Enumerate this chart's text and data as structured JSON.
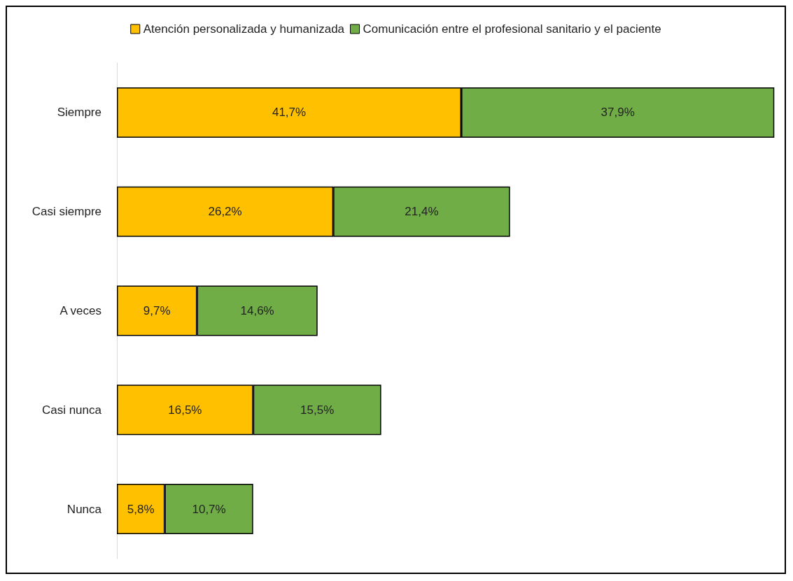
{
  "chart_data": {
    "type": "bar",
    "orientation": "horizontal",
    "stacked": true,
    "tick_labels": "y",
    "legend": "top",
    "grid": false,
    "categories": [
      "Siempre",
      "Casi siempre",
      "A veces",
      "Casi nunca",
      "Nunca"
    ],
    "series": [
      {
        "name": "Atención personalizada y humanizada",
        "color": "#ffc000",
        "values": [
          41.7,
          26.2,
          9.7,
          16.5,
          5.8
        ],
        "value_labels": [
          "41,7%",
          "26,2%",
          "9,7%",
          "16,5%",
          "5,8%"
        ]
      },
      {
        "name": "Comunicación entre el profesional sanitario y el paciente",
        "color": "#70ad47",
        "values": [
          37.9,
          21.4,
          14.6,
          15.5,
          10.7
        ],
        "value_labels": [
          "37,9%",
          "21,4%",
          "14,6%",
          "15,5%",
          "10,7%"
        ]
      }
    ]
  }
}
